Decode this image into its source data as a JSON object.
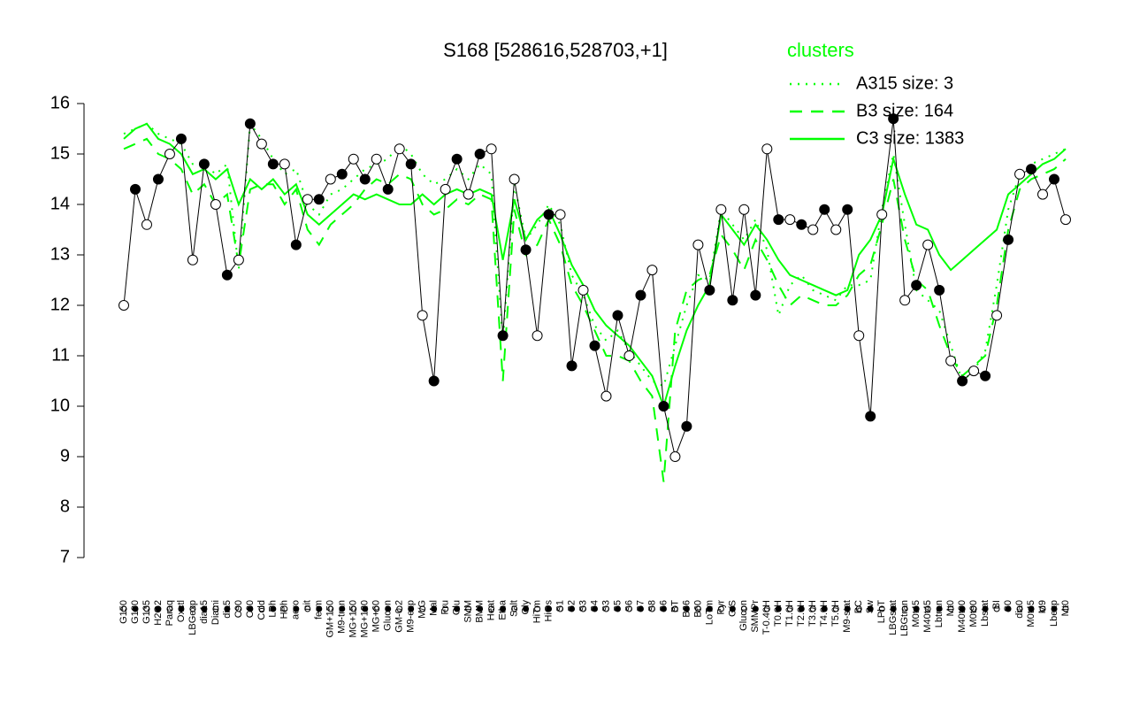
{
  "chart_data": {
    "type": "line",
    "title": "S168 [528616,528703,+1]",
    "categories": [
      "G150",
      "G180",
      "G135",
      "H2O2",
      "Paraq",
      "Oxctl",
      "LBGexp",
      "dia15",
      "Diami",
      "dia5",
      "C90",
      "C30",
      "Cold",
      "LPh",
      "HPh",
      "aero",
      "nit",
      "ferm",
      "GM+150",
      "M9-tran",
      "MG+150",
      "MG+120",
      "MG+60",
      "Glucon",
      "GM-0.2",
      "M9-exp",
      "M/G",
      "Mal",
      "Fru",
      "Glu",
      "SMM",
      "BMM",
      "Heat",
      "Etha",
      "Salt",
      "Gly",
      "HiTm",
      "HiOs",
      "S1",
      "S2",
      "S3",
      "S4",
      "S3",
      "S5",
      "S6",
      "S7",
      "S8",
      "S6",
      "BT",
      "B36",
      "B60",
      "LoTm",
      "Pyr",
      "G/S",
      "Glucon",
      "SMMPr",
      "T-0.40H",
      "T0.0H",
      "T1.0H",
      "T2.0H",
      "T3.0H",
      "T4.0H",
      "T5.0H",
      "M9-stat",
      "BC",
      "Sw",
      "LPhT",
      "LBGstat",
      "LBGtran",
      "M0t45",
      "M40t45",
      "Lbtran",
      "Mt0",
      "M40t90",
      "M0t90",
      "Lbstat",
      "BI",
      "S0",
      "dia0",
      "M0t45",
      "M9",
      "Lbexp",
      "Mt0"
    ],
    "values": [
      12.0,
      14.3,
      13.6,
      14.5,
      15.0,
      15.3,
      12.9,
      14.8,
      14.0,
      12.6,
      12.9,
      15.6,
      15.2,
      14.8,
      14.8,
      13.2,
      14.1,
      14.1,
      14.5,
      14.6,
      14.9,
      14.5,
      14.9,
      14.3,
      15.1,
      14.8,
      11.8,
      10.5,
      14.3,
      14.9,
      14.2,
      15.0,
      15.1,
      11.4,
      14.5,
      13.1,
      11.4,
      13.8,
      13.8,
      10.8,
      12.3,
      11.2,
      10.2,
      11.8,
      11.0,
      12.2,
      12.7,
      10.0,
      9.0,
      9.6,
      13.2,
      12.3,
      13.9,
      12.1,
      13.9,
      12.2,
      15.1,
      13.7,
      13.7,
      13.6,
      13.5,
      13.9,
      13.5,
      13.9,
      11.4,
      9.8,
      13.8,
      15.7,
      12.1,
      12.4,
      13.2,
      12.3,
      10.9,
      10.5,
      10.7,
      10.6,
      11.8,
      13.3,
      14.6,
      14.7,
      14.2,
      14.5,
      13.7
    ],
    "color": "#000000",
    "legend_title": "clusters",
    "series": [
      {
        "name": "A315 size: 3",
        "color": "#00ff00",
        "dash": "dotted",
        "values": [
          15.4,
          15.5,
          15.6,
          15.4,
          15.3,
          15.2,
          14.8,
          14.8,
          14.6,
          14.8,
          12.7,
          15.6,
          15.3,
          14.9,
          14.6,
          14.7,
          14.0,
          13.8,
          14.2,
          14.3,
          14.5,
          14.7,
          14.8,
          14.9,
          15.2,
          15.0,
          14.6,
          14.4,
          14.5,
          14.7,
          14.5,
          14.8,
          14.6,
          11.3,
          14.4,
          13.3,
          13.6,
          14.0,
          13.6,
          12.6,
          12.2,
          11.6,
          11.3,
          11.5,
          11.1,
          10.8,
          10.5,
          10.4,
          11.2,
          12.0,
          12.6,
          12.5,
          13.9,
          13.6,
          13.3,
          13.7,
          13.1,
          11.8,
          12.4,
          12.6,
          12.3,
          12.2,
          12.1,
          12.4,
          12.4,
          12.5,
          13.9,
          15.0,
          13.6,
          12.3,
          12.1,
          11.9,
          11.2,
          10.5,
          10.7,
          11.1,
          12.4,
          13.9,
          14.6,
          14.8,
          14.9,
          15.0,
          15.1
        ]
      },
      {
        "name": "B3 size: 164",
        "color": "#00ff00",
        "dash": "dashed",
        "values": [
          15.1,
          15.2,
          15.3,
          15.0,
          14.9,
          14.7,
          14.2,
          14.4,
          14.0,
          14.2,
          12.8,
          14.3,
          14.4,
          14.4,
          14.0,
          14.3,
          13.5,
          13.2,
          13.6,
          13.8,
          14.0,
          14.3,
          14.5,
          14.4,
          14.6,
          14.5,
          14.0,
          13.8,
          13.9,
          14.1,
          14.0,
          14.2,
          14.1,
          10.5,
          13.9,
          13.0,
          13.2,
          13.7,
          13.2,
          12.4,
          12.0,
          11.5,
          11.0,
          11.0,
          10.9,
          10.5,
          10.2,
          8.5,
          11.5,
          12.3,
          12.5,
          12.6,
          13.4,
          13.1,
          12.7,
          13.3,
          12.9,
          12.4,
          12.0,
          12.2,
          12.1,
          12.0,
          12.0,
          12.2,
          12.6,
          12.8,
          13.6,
          14.5,
          13.3,
          12.5,
          12.3,
          11.6,
          11.0,
          10.6,
          10.8,
          11.0,
          12.0,
          13.5,
          14.3,
          14.5,
          14.6,
          14.7,
          14.9
        ]
      },
      {
        "name": "C3 size: 1383",
        "color": "#00ff00",
        "dash": "solid",
        "values": [
          15.3,
          15.5,
          15.6,
          15.3,
          15.2,
          15.0,
          14.6,
          14.7,
          14.5,
          14.7,
          14.0,
          14.5,
          14.3,
          14.5,
          14.2,
          14.4,
          13.8,
          13.6,
          13.8,
          14.0,
          14.2,
          14.1,
          14.2,
          14.1,
          14.0,
          14.0,
          14.2,
          14.0,
          14.2,
          14.3,
          14.2,
          14.3,
          14.2,
          12.9,
          14.1,
          13.3,
          13.7,
          13.9,
          13.4,
          12.8,
          12.4,
          11.9,
          11.6,
          11.4,
          11.2,
          10.9,
          10.6,
          10.0,
          10.8,
          11.5,
          12.0,
          12.4,
          13.8,
          13.5,
          13.2,
          13.6,
          13.3,
          12.9,
          12.6,
          12.5,
          12.4,
          12.3,
          12.2,
          12.3,
          13.0,
          13.3,
          13.8,
          14.9,
          14.2,
          13.6,
          13.5,
          13.0,
          12.7,
          12.9,
          13.1,
          13.3,
          13.5,
          14.2,
          14.4,
          14.6,
          14.8,
          14.9,
          15.1
        ]
      }
    ],
    "ylim": [
      7,
      16
    ],
    "yticks": [
      7,
      8,
      9,
      10,
      11,
      12,
      13,
      14,
      15,
      16
    ]
  }
}
